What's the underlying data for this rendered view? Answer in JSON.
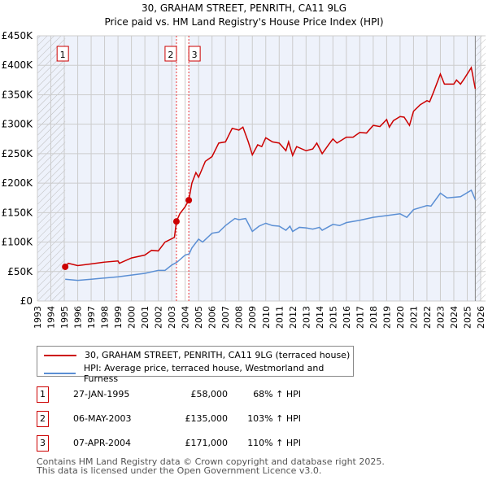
{
  "chart_data": {
    "type": "line",
    "title": "30, GRAHAM STREET, PENRITH, CA11 9LG",
    "subtitle": "Price paid vs. HM Land Registry's House Price Index (HPI)",
    "xlim": [
      1993,
      2026
    ],
    "ylim": [
      0,
      450000
    ],
    "x_ticks": [
      "1993",
      "1994",
      "1995",
      "1996",
      "1997",
      "1998",
      "1999",
      "2000",
      "2001",
      "2002",
      "2003",
      "2004",
      "2005",
      "2006",
      "2007",
      "2008",
      "2009",
      "2010",
      "2011",
      "2012",
      "2013",
      "2014",
      "2015",
      "2016",
      "2017",
      "2018",
      "2019",
      "2020",
      "2021",
      "2022",
      "2023",
      "2024",
      "2025",
      "2026"
    ],
    "y_ticks": [
      "£0",
      "£50K",
      "£100K",
      "£150K",
      "£200K",
      "£250K",
      "£300K",
      "£350K",
      "£400K",
      "£450K"
    ],
    "grid": true,
    "legend_placement": "below",
    "series": [
      {
        "name": "30, GRAHAM STREET, PENRITH, CA11 9LG (terraced house)",
        "color": "#cc0000",
        "x": [
          1995.07,
          1995.3,
          1996,
          1997,
          1998,
          1999,
          1999.1,
          2000,
          2001,
          2001.5,
          2002,
          2002.5,
          2003.2,
          2003.35,
          2003.6,
          2004,
          2004.27,
          2004.5,
          2004.8,
          2005,
          2005.5,
          2006,
          2006.5,
          2007,
          2007.5,
          2008,
          2008.3,
          2008.7,
          2009,
          2009.4,
          2009.7,
          2010,
          2010.5,
          2011,
          2011.5,
          2011.7,
          2012,
          2012.3,
          2013,
          2013.5,
          2013.8,
          2014.2,
          2014.7,
          2015,
          2015.3,
          2016,
          2016.5,
          2017,
          2017.5,
          2018,
          2018.5,
          2019,
          2019.2,
          2019.5,
          2020,
          2020.3,
          2020.7,
          2021,
          2021.5,
          2022,
          2022.2,
          2022.5,
          2023,
          2023.3,
          2024,
          2024.2,
          2024.5,
          2024.8,
          2025.3,
          2025.6
        ],
        "y": [
          58000,
          64000,
          60000,
          63000,
          66000,
          68000,
          64000,
          73000,
          78000,
          86000,
          85000,
          100000,
          108000,
          135000,
          148000,
          160000,
          171000,
          200000,
          218000,
          210000,
          237000,
          245000,
          268000,
          270000,
          293000,
          290000,
          295000,
          270000,
          248000,
          265000,
          262000,
          277000,
          270000,
          268000,
          255000,
          270000,
          247000,
          262000,
          255000,
          258000,
          268000,
          250000,
          266000,
          275000,
          268000,
          278000,
          278000,
          286000,
          285000,
          298000,
          296000,
          308000,
          295000,
          306000,
          313000,
          312000,
          298000,
          322000,
          333000,
          340000,
          338000,
          355000,
          385000,
          368000,
          368000,
          375000,
          368000,
          378000,
          396000,
          360000
        ]
      },
      {
        "name": "HPI: Average price, terraced house, Westmorland and Furness",
        "color": "#5b8fd4",
        "x": [
          1995.07,
          1996,
          1997,
          1998,
          1999,
          2000,
          2001,
          2002,
          2002.5,
          2003,
          2003.4,
          2004,
          2004.3,
          2004.5,
          2005,
          2005.3,
          2006,
          2006.5,
          2007,
          2007.7,
          2008,
          2008.5,
          2009,
          2009.5,
          2010,
          2010.5,
          2011,
          2011.5,
          2011.8,
          2012,
          2012.5,
          2013,
          2013.5,
          2014,
          2014.2,
          2015,
          2015.5,
          2016,
          2017,
          2018,
          2019,
          2020,
          2020.5,
          2021,
          2022,
          2022.3,
          2023,
          2023.5,
          2024,
          2024.5,
          2025.3,
          2025.6
        ],
        "y": [
          37000,
          35000,
          37000,
          39000,
          41000,
          44000,
          47000,
          52000,
          52000,
          61000,
          66000,
          78000,
          80000,
          90000,
          105000,
          100000,
          115000,
          117000,
          128000,
          140000,
          138000,
          140000,
          118000,
          127000,
          132000,
          128000,
          127000,
          120000,
          127000,
          118000,
          125000,
          124000,
          122000,
          125000,
          120000,
          130000,
          128000,
          133000,
          137000,
          142000,
          145000,
          148000,
          142000,
          155000,
          162000,
          161000,
          183000,
          175000,
          176000,
          177000,
          188000,
          172000
        ]
      }
    ],
    "sales": [
      {
        "label": "1",
        "x": 1995.07,
        "y": 58000
      },
      {
        "label": "2",
        "x": 2003.35,
        "y": 135000
      },
      {
        "label": "3",
        "x": 2004.27,
        "y": 171000
      }
    ]
  },
  "table": [
    {
      "num": "1",
      "date": "27-JAN-1995",
      "price": "£58,000",
      "hpi": "68% ↑ HPI"
    },
    {
      "num": "2",
      "date": "06-MAY-2003",
      "price": "£135,000",
      "hpi": "103% ↑ HPI"
    },
    {
      "num": "3",
      "date": "07-APR-2004",
      "price": "£171,000",
      "hpi": "110% ↑ HPI"
    }
  ],
  "footer": {
    "line1": "Contains HM Land Registry data © Crown copyright and database right 2025.",
    "line2": "This data is licensed under the Open Government Licence v3.0."
  }
}
